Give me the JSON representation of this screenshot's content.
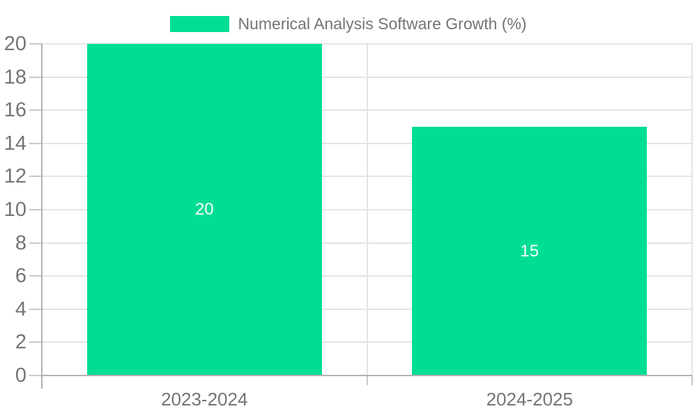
{
  "chart_data": {
    "type": "bar",
    "title": "Numerical Analysis Software Growth (%)",
    "categories": [
      "2023-2024",
      "2024-2025"
    ],
    "values": [
      20,
      15
    ],
    "bar_labels": [
      "20",
      "15"
    ],
    "xlabel": "",
    "ylabel": "",
    "ylim": [
      0,
      20
    ],
    "ytick_step": 2,
    "ytick_labels": [
      "0",
      "2",
      "4",
      "6",
      "8",
      "10",
      "12",
      "14",
      "16",
      "18",
      "20"
    ],
    "grid": true,
    "legend_position": "top-center",
    "legend_entries": [
      "Numerical Analysis Software Growth (%)"
    ],
    "colors": {
      "bar": "#00DE95",
      "grid": "#e4e4e4",
      "axis": "#b2b2b2",
      "tick": "#c8c8c8",
      "label": "#747474",
      "value_label": "#ffffff",
      "background": "#ffffff"
    }
  }
}
